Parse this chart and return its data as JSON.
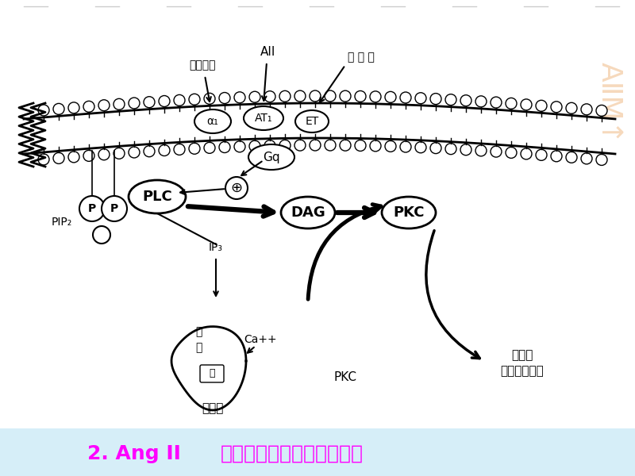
{
  "title_bold": "2. Ang II",
  "title_regular": "促生长作用的信号转导通路",
  "title_color": "#FF00FF",
  "title_bg_color": "#D6EEF8",
  "bg_color": "#FFFFFF",
  "watermark_color": "#F0C090",
  "labels": {
    "shen_shang": "肾上腺素",
    "AII": "AII",
    "nei_pi_su": "内 皮 素",
    "alpha1": "α₁",
    "AT1": "AT₁",
    "ET": "ET",
    "Gq": "Gq",
    "PLC": "PLC",
    "plus": "⊕",
    "DAG": "DAG",
    "PKC_membrane": "PKC",
    "PIP2": "PIP₂",
    "IP3": "IP₃",
    "ji": "肌",
    "jiang": "浆",
    "wang": "网",
    "Ca": "Ca++",
    "xi_bao_jiang": "细胞浆",
    "PKC_bottom": "PKC",
    "cu_sheng_zhang": "促生长",
    "ji_huo": "激活原癌基因"
  }
}
